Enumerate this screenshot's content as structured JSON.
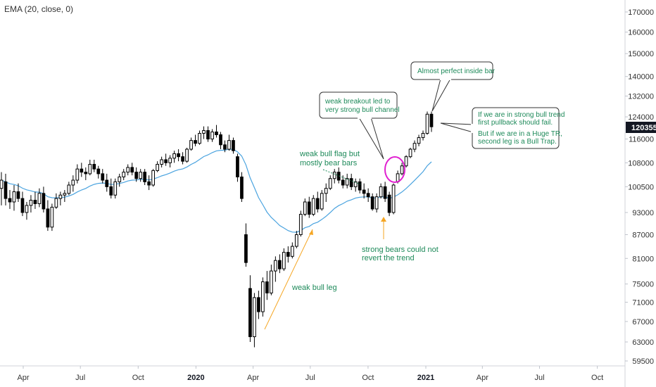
{
  "indicator_legend": "EMA (20, close, 0)",
  "current_price_label": "120355",
  "colors": {
    "ema": "#4aa3df",
    "annotation_text": "#1e8a5a",
    "arrow": "#f5a623",
    "highlight_circle": "#e020d0",
    "price_tag_bg": "#131722",
    "candle_up": "#ffffff",
    "candle_down": "#000000"
  },
  "annotations": {
    "weak_bull_leg": "weak bull leg",
    "weak_bull_flag": [
      "weak bull flag but",
      "mostly bear bars"
    ],
    "strong_bears": [
      "strong bears could not",
      "revert the trend"
    ],
    "weak_breakout": [
      "weak breakout led to",
      "very strong bull channel"
    ],
    "inside_bar": "Almost perfect inside bar",
    "strong_bull_trend": [
      "If we are in strong bull trend",
      "first pullback should fail.",
      "",
      "But if we are in a Huge TR,",
      "second leg is a Bull Trap."
    ]
  },
  "chart_data": {
    "type": "candlestick",
    "title": "",
    "series": [
      {
        "name": "EMA (20, close, 0)",
        "type": "line"
      }
    ],
    "y_scale": "log",
    "y_ticks": [
      59500,
      63000,
      67000,
      71000,
      75000,
      81000,
      87000,
      93000,
      100500,
      108000,
      116000,
      124000,
      132000,
      140000,
      150000,
      160000,
      170000
    ],
    "x_ticks": [
      {
        "label": "Apr",
        "date": "2019-04-01",
        "major": false
      },
      {
        "label": "Jul",
        "date": "2019-07-01",
        "major": false
      },
      {
        "label": "Oct",
        "date": "2019-10-01",
        "major": false
      },
      {
        "label": "2020",
        "date": "2020-01-01",
        "major": true
      },
      {
        "label": "Apr",
        "date": "2020-04-01",
        "major": false
      },
      {
        "label": "Jul",
        "date": "2020-07-01",
        "major": false
      },
      {
        "label": "Oct",
        "date": "2020-10-01",
        "major": false
      },
      {
        "label": "2021",
        "date": "2021-01-01",
        "major": true
      },
      {
        "label": "Apr",
        "date": "2021-04-01",
        "major": false
      },
      {
        "label": "Jul",
        "date": "2021-07-01",
        "major": false
      },
      {
        "label": "Oct",
        "date": "2021-10-01",
        "major": false
      }
    ],
    "candles": [
      {
        "o": 100000,
        "h": 105000,
        "l": 95000,
        "c": 102500
      },
      {
        "o": 102000,
        "h": 104500,
        "l": 95000,
        "c": 97000
      },
      {
        "o": 97000,
        "h": 99500,
        "l": 94000,
        "c": 96000
      },
      {
        "o": 96000,
        "h": 101000,
        "l": 93500,
        "c": 99000
      },
      {
        "o": 99000,
        "h": 101500,
        "l": 96000,
        "c": 97000
      },
      {
        "o": 97000,
        "h": 99000,
        "l": 92000,
        "c": 93000
      },
      {
        "o": 93000,
        "h": 96000,
        "l": 91000,
        "c": 95000
      },
      {
        "o": 95000,
        "h": 98000,
        "l": 93000,
        "c": 96500
      },
      {
        "o": 96500,
        "h": 99000,
        "l": 94000,
        "c": 95500
      },
      {
        "o": 95500,
        "h": 100000,
        "l": 94500,
        "c": 98500
      },
      {
        "o": 98500,
        "h": 100500,
        "l": 93000,
        "c": 94000
      },
      {
        "o": 94000,
        "h": 96500,
        "l": 88000,
        "c": 89000
      },
      {
        "o": 89000,
        "h": 95500,
        "l": 88000,
        "c": 94500
      },
      {
        "o": 94500,
        "h": 98500,
        "l": 94000,
        "c": 97000
      },
      {
        "o": 97000,
        "h": 99000,
        "l": 95000,
        "c": 98000
      },
      {
        "o": 98000,
        "h": 99500,
        "l": 96000,
        "c": 98500
      },
      {
        "o": 98500,
        "h": 102000,
        "l": 98000,
        "c": 101000
      },
      {
        "o": 101000,
        "h": 104000,
        "l": 99000,
        "c": 102500
      },
      {
        "o": 102500,
        "h": 107500,
        "l": 101500,
        "c": 106000
      },
      {
        "o": 106000,
        "h": 108000,
        "l": 103500,
        "c": 105000
      },
      {
        "o": 105000,
        "h": 106500,
        "l": 102500,
        "c": 104500
      },
      {
        "o": 104500,
        "h": 109000,
        "l": 104000,
        "c": 107500
      },
      {
        "o": 107500,
        "h": 109000,
        "l": 105000,
        "c": 106000
      },
      {
        "o": 106000,
        "h": 107000,
        "l": 103000,
        "c": 104500
      },
      {
        "o": 104500,
        "h": 106000,
        "l": 101500,
        "c": 102500
      },
      {
        "o": 102500,
        "h": 104500,
        "l": 99000,
        "c": 100500
      },
      {
        "o": 100500,
        "h": 103000,
        "l": 97000,
        "c": 98000
      },
      {
        "o": 98000,
        "h": 103000,
        "l": 97000,
        "c": 102000
      },
      {
        "o": 102000,
        "h": 104500,
        "l": 100500,
        "c": 103500
      },
      {
        "o": 103500,
        "h": 106000,
        "l": 102500,
        "c": 105000
      },
      {
        "o": 105000,
        "h": 107500,
        "l": 104000,
        "c": 106500
      },
      {
        "o": 106500,
        "h": 108000,
        "l": 104000,
        "c": 105000
      },
      {
        "o": 105000,
        "h": 106500,
        "l": 102000,
        "c": 103000
      },
      {
        "o": 103000,
        "h": 106000,
        "l": 102000,
        "c": 105000
      },
      {
        "o": 105000,
        "h": 106000,
        "l": 101000,
        "c": 102000
      },
      {
        "o": 102000,
        "h": 104000,
        "l": 99500,
        "c": 101000
      },
      {
        "o": 101000,
        "h": 106000,
        "l": 100500,
        "c": 105500
      },
      {
        "o": 105500,
        "h": 108500,
        "l": 105000,
        "c": 107500
      },
      {
        "o": 107500,
        "h": 110000,
        "l": 106500,
        "c": 109000
      },
      {
        "o": 109000,
        "h": 111000,
        "l": 107000,
        "c": 108000
      },
      {
        "o": 108000,
        "h": 110500,
        "l": 106500,
        "c": 109500
      },
      {
        "o": 109500,
        "h": 112000,
        "l": 108000,
        "c": 111000
      },
      {
        "o": 111000,
        "h": 112500,
        "l": 108500,
        "c": 110000
      },
      {
        "o": 110000,
        "h": 111500,
        "l": 107500,
        "c": 108500
      },
      {
        "o": 108500,
        "h": 113000,
        "l": 108000,
        "c": 112500
      },
      {
        "o": 112500,
        "h": 116500,
        "l": 112000,
        "c": 115500
      },
      {
        "o": 115500,
        "h": 117500,
        "l": 113500,
        "c": 114500
      },
      {
        "o": 114500,
        "h": 119000,
        "l": 114000,
        "c": 118000
      },
      {
        "o": 118000,
        "h": 120500,
        "l": 116000,
        "c": 119000
      },
      {
        "o": 119000,
        "h": 120500,
        "l": 115000,
        "c": 116000
      },
      {
        "o": 116000,
        "h": 119500,
        "l": 115000,
        "c": 118500
      },
      {
        "o": 118500,
        "h": 121000,
        "l": 116500,
        "c": 117500
      },
      {
        "o": 117500,
        "h": 118500,
        "l": 112500,
        "c": 114000
      },
      {
        "o": 114000,
        "h": 115500,
        "l": 111500,
        "c": 112500
      },
      {
        "o": 112500,
        "h": 117500,
        "l": 112000,
        "c": 115500
      },
      {
        "o": 115500,
        "h": 116500,
        "l": 111000,
        "c": 112000
      },
      {
        "o": 110000,
        "h": 111000,
        "l": 102000,
        "c": 103500
      },
      {
        "o": 103500,
        "h": 105000,
        "l": 96000,
        "c": 97000
      },
      {
        "o": 87000,
        "h": 90000,
        "l": 79000,
        "c": 80000
      },
      {
        "o": 74000,
        "h": 77000,
        "l": 63000,
        "c": 64000
      },
      {
        "o": 64000,
        "h": 73000,
        "l": 62000,
        "c": 72000
      },
      {
        "o": 72000,
        "h": 73500,
        "l": 67500,
        "c": 69000
      },
      {
        "o": 69000,
        "h": 76500,
        "l": 68000,
        "c": 75500
      },
      {
        "o": 75500,
        "h": 78000,
        "l": 71500,
        "c": 73000
      },
      {
        "o": 73000,
        "h": 79500,
        "l": 72500,
        "c": 78000
      },
      {
        "o": 78000,
        "h": 81500,
        "l": 75500,
        "c": 80500
      },
      {
        "o": 80500,
        "h": 82000,
        "l": 77500,
        "c": 78500
      },
      {
        "o": 78500,
        "h": 83500,
        "l": 78000,
        "c": 82500
      },
      {
        "o": 82500,
        "h": 84000,
        "l": 80000,
        "c": 81500
      },
      {
        "o": 81500,
        "h": 85000,
        "l": 81000,
        "c": 84000
      },
      {
        "o": 84000,
        "h": 88000,
        "l": 83500,
        "c": 87000
      },
      {
        "o": 87000,
        "h": 93500,
        "l": 86500,
        "c": 92500
      },
      {
        "o": 92500,
        "h": 97000,
        "l": 92000,
        "c": 96000
      },
      {
        "o": 96000,
        "h": 97500,
        "l": 91500,
        "c": 92500
      },
      {
        "o": 92500,
        "h": 98000,
        "l": 92000,
        "c": 97000
      },
      {
        "o": 97000,
        "h": 99000,
        "l": 93000,
        "c": 94000
      },
      {
        "o": 94000,
        "h": 99500,
        "l": 93500,
        "c": 98500
      },
      {
        "o": 98500,
        "h": 101500,
        "l": 96000,
        "c": 100000
      },
      {
        "o": 100000,
        "h": 104000,
        "l": 99500,
        "c": 103000
      },
      {
        "o": 103000,
        "h": 106000,
        "l": 101500,
        "c": 105000
      },
      {
        "o": 105000,
        "h": 106500,
        "l": 101500,
        "c": 102500
      },
      {
        "o": 102500,
        "h": 104000,
        "l": 100000,
        "c": 101000
      },
      {
        "o": 101000,
        "h": 104500,
        "l": 100000,
        "c": 103000
      },
      {
        "o": 103000,
        "h": 104500,
        "l": 99500,
        "c": 100500
      },
      {
        "o": 100500,
        "h": 103000,
        "l": 99000,
        "c": 102000
      },
      {
        "o": 102000,
        "h": 103000,
        "l": 98500,
        "c": 99500
      },
      {
        "o": 99500,
        "h": 101500,
        "l": 97000,
        "c": 98500
      },
      {
        "o": 98500,
        "h": 100000,
        "l": 96000,
        "c": 97500
      },
      {
        "o": 97500,
        "h": 98500,
        "l": 93500,
        "c": 94000
      },
      {
        "o": 94000,
        "h": 98500,
        "l": 93000,
        "c": 97500
      },
      {
        "o": 97500,
        "h": 101500,
        "l": 97000,
        "c": 100500
      },
      {
        "o": 100500,
        "h": 102000,
        "l": 96000,
        "c": 97000
      },
      {
        "o": 98000,
        "h": 99000,
        "l": 92000,
        "c": 93000
      },
      {
        "o": 93000,
        "h": 101500,
        "l": 92500,
        "c": 101000
      },
      {
        "o": 102000,
        "h": 105500,
        "l": 101500,
        "c": 104500
      },
      {
        "o": 104500,
        "h": 108000,
        "l": 104000,
        "c": 107000
      },
      {
        "o": 107000,
        "h": 110500,
        "l": 106500,
        "c": 110000
      },
      {
        "o": 110000,
        "h": 113000,
        "l": 109500,
        "c": 112500
      },
      {
        "o": 112500,
        "h": 115500,
        "l": 111500,
        "c": 114500
      },
      {
        "o": 114500,
        "h": 117500,
        "l": 113500,
        "c": 116500
      },
      {
        "o": 116500,
        "h": 119000,
        "l": 115500,
        "c": 118000
      },
      {
        "o": 118000,
        "h": 126000,
        "l": 117500,
        "c": 125000
      },
      {
        "o": 125000,
        "h": 126000,
        "l": 118500,
        "c": 120355
      }
    ]
  }
}
